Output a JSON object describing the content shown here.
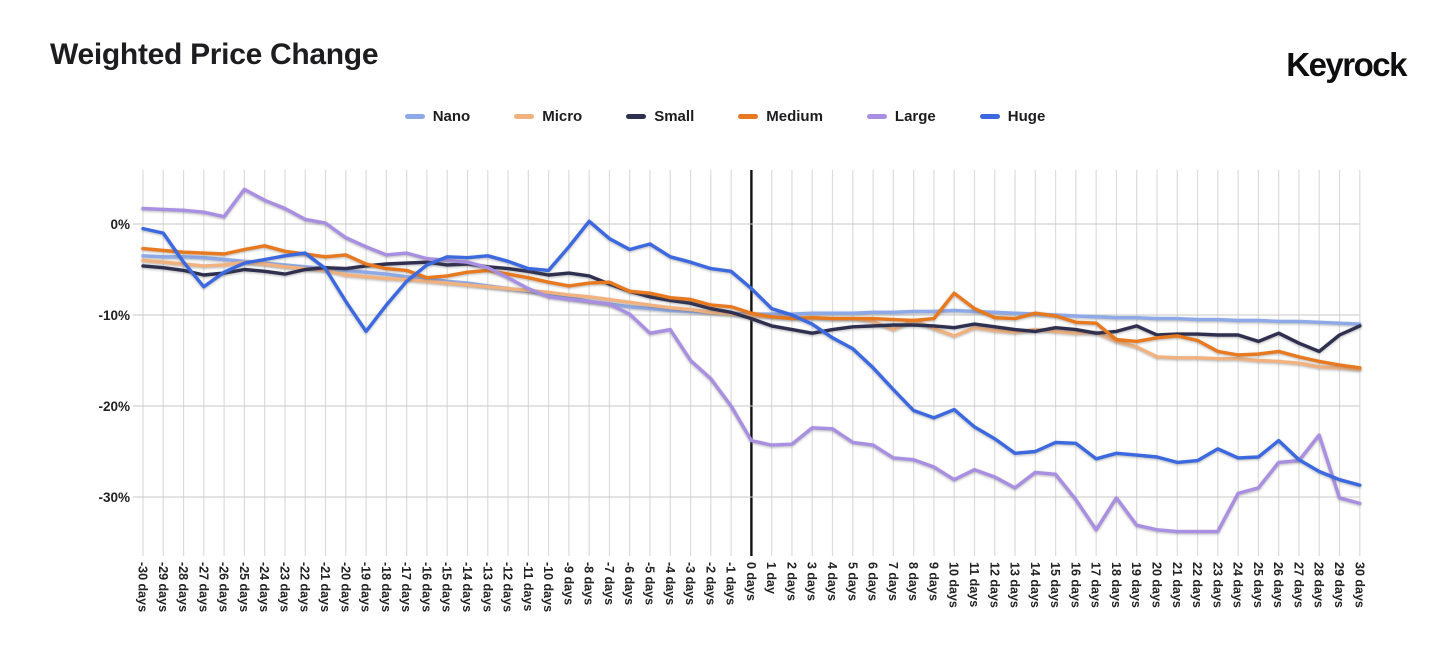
{
  "header": {
    "title": "Weighted Price Change",
    "logo": "Keyrock"
  },
  "chart_data": {
    "type": "line",
    "title": "Weighted Price Change",
    "xlabel": "",
    "ylabel": "",
    "grid": true,
    "legend_position": "top-center",
    "x_range": [
      -30,
      30
    ],
    "ylim": [
      -36,
      6
    ],
    "zero_day_divider": true,
    "y_ticks": [
      0,
      -10,
      -20,
      -30
    ],
    "y_tick_labels": [
      "0%",
      "-10%",
      "-20%",
      "-30%"
    ],
    "x": [
      -30,
      -29,
      -28,
      -27,
      -26,
      -25,
      -24,
      -23,
      -22,
      -21,
      -20,
      -19,
      -18,
      -17,
      -16,
      -15,
      -14,
      -13,
      -12,
      -11,
      -10,
      -9,
      -8,
      -7,
      -6,
      -5,
      -4,
      -3,
      -2,
      -1,
      0,
      1,
      2,
      3,
      4,
      5,
      6,
      7,
      8,
      9,
      10,
      11,
      12,
      13,
      14,
      15,
      16,
      17,
      18,
      19,
      20,
      21,
      22,
      23,
      24,
      25,
      26,
      27,
      28,
      29,
      30
    ],
    "x_labels": [
      "-30 days",
      "-29 days",
      "-28 days",
      "-27 days",
      "-26 days",
      "-25 days",
      "-24 days",
      "-23 days",
      "-22 days",
      "-21 days",
      "-20 days",
      "-19 days",
      "-18 days",
      "-17 days",
      "-16 days",
      "-15 days",
      "-14 days",
      "-13 days",
      "-12 days",
      "-11 days",
      "-10 days",
      "-9 days",
      "-8 days",
      "-7 days",
      "-6 days",
      "-5 days",
      "-4 days",
      "-3 days",
      "-2 days",
      "-1 days",
      "0 days",
      "1 day",
      "2 days",
      "3 days",
      "4 days",
      "5 days",
      "6 days",
      "7 days",
      "8 days",
      "9 days",
      "10 days",
      "11 days",
      "12 days",
      "13 days",
      "14 days",
      "15 days",
      "16 days",
      "17 days",
      "18 days",
      "19 days",
      "20 days",
      "21 days",
      "22 days",
      "23 days",
      "24 days",
      "25 days",
      "26 days",
      "27 days",
      "28 days",
      "29 days",
      "30 days"
    ],
    "series": [
      {
        "name": "Nano",
        "color": "#8ea9e8",
        "values": [
          -3.5,
          -3.6,
          -3.6,
          -3.7,
          -3.9,
          -4.1,
          -4.3,
          -4.5,
          -4.7,
          -4.9,
          -5.1,
          -5.3,
          -5.5,
          -5.8,
          -6.0,
          -6.3,
          -6.5,
          -6.8,
          -7.1,
          -7.4,
          -7.7,
          -8.1,
          -8.5,
          -8.8,
          -9.1,
          -9.3,
          -9.5,
          -9.6,
          -9.7,
          -9.8,
          -9.9,
          -9.9,
          -9.9,
          -9.8,
          -9.8,
          -9.8,
          -9.7,
          -9.7,
          -9.6,
          -9.6,
          -9.5,
          -9.6,
          -9.7,
          -9.8,
          -9.9,
          -10.0,
          -10.1,
          -10.2,
          -10.3,
          -10.3,
          -10.4,
          -10.4,
          -10.5,
          -10.5,
          -10.6,
          -10.6,
          -10.7,
          -10.7,
          -10.8,
          -10.9,
          -11.0
        ]
      },
      {
        "name": "Micro",
        "color": "#f2b27f",
        "values": [
          -4.0,
          -4.2,
          -4.4,
          -4.6,
          -4.5,
          -4.2,
          -4.4,
          -4.7,
          -4.9,
          -5.1,
          -5.6,
          -5.8,
          -6.0,
          -6.1,
          -6.3,
          -6.5,
          -6.7,
          -6.9,
          -7.1,
          -7.3,
          -7.5,
          -7.8,
          -8.0,
          -8.3,
          -8.6,
          -8.9,
          -9.2,
          -9.4,
          -9.7,
          -9.9,
          -10.1,
          -10.2,
          -10.3,
          -10.3,
          -10.4,
          -10.4,
          -10.7,
          -11.6,
          -10.6,
          -11.5,
          -12.3,
          -11.4,
          -11.7,
          -11.9,
          -11.6,
          -11.8,
          -12.0,
          -11.9,
          -12.9,
          -13.5,
          -14.6,
          -14.7,
          -14.7,
          -14.8,
          -14.8,
          -15.0,
          -15.1,
          -15.3,
          -15.7,
          -15.8,
          -16.0
        ]
      },
      {
        "name": "Small",
        "color": "#2f2f4f",
        "values": [
          -4.6,
          -4.8,
          -5.1,
          -5.6,
          -5.4,
          -5.0,
          -5.2,
          -5.5,
          -5.0,
          -4.8,
          -4.9,
          -4.6,
          -4.4,
          -4.3,
          -4.2,
          -4.5,
          -4.4,
          -4.7,
          -4.9,
          -5.2,
          -5.6,
          -5.4,
          -5.7,
          -6.6,
          -7.4,
          -8.0,
          -8.4,
          -8.7,
          -9.3,
          -9.7,
          -10.4,
          -11.2,
          -11.6,
          -12.0,
          -11.6,
          -11.3,
          -11.2,
          -11.1,
          -11.1,
          -11.2,
          -11.4,
          -11.0,
          -11.3,
          -11.6,
          -11.8,
          -11.4,
          -11.6,
          -12.0,
          -11.8,
          -11.2,
          -12.2,
          -12.1,
          -12.1,
          -12.2,
          -12.2,
          -12.9,
          -12.0,
          -13.1,
          -14.0,
          -12.2,
          -11.2
        ]
      },
      {
        "name": "Medium",
        "color": "#e8791e",
        "values": [
          -2.7,
          -2.9,
          -3.1,
          -3.2,
          -3.3,
          -2.8,
          -2.4,
          -3.0,
          -3.3,
          -3.6,
          -3.4,
          -4.4,
          -4.9,
          -5.1,
          -5.9,
          -5.7,
          -5.3,
          -5.1,
          -5.5,
          -5.9,
          -6.4,
          -6.8,
          -6.5,
          -6.4,
          -7.4,
          -7.6,
          -8.1,
          -8.3,
          -8.9,
          -9.1,
          -9.8,
          -10.2,
          -10.4,
          -10.3,
          -10.4,
          -10.4,
          -10.4,
          -10.5,
          -10.6,
          -10.4,
          -7.6,
          -9.3,
          -10.3,
          -10.4,
          -9.8,
          -10.1,
          -10.8,
          -10.9,
          -12.7,
          -12.9,
          -12.5,
          -12.3,
          -12.8,
          -14.0,
          -14.4,
          -14.3,
          -14.0,
          -14.6,
          -15.1,
          -15.5,
          -15.8
        ]
      },
      {
        "name": "Large",
        "color": "#a98fe2",
        "values": [
          1.7,
          1.6,
          1.5,
          1.3,
          0.8,
          3.8,
          2.6,
          1.7,
          0.5,
          0.1,
          -1.5,
          -2.5,
          -3.4,
          -3.2,
          -3.8,
          -4.0,
          -4.2,
          -4.8,
          -5.9,
          -7.1,
          -8.0,
          -8.3,
          -8.5,
          -8.8,
          -9.9,
          -12.0,
          -11.6,
          -15.0,
          -17.0,
          -20.0,
          -23.8,
          -24.3,
          -24.2,
          -22.4,
          -22.5,
          -24.0,
          -24.3,
          -25.7,
          -25.9,
          -26.7,
          -28.1,
          -27.0,
          -27.8,
          -29.0,
          -27.3,
          -27.5,
          -30.3,
          -33.6,
          -30.1,
          -33.1,
          -33.6,
          -33.8,
          -33.8,
          -33.8,
          -29.6,
          -29.0,
          -26.2,
          -26.0,
          -23.2,
          -30.1,
          -30.7
        ]
      },
      {
        "name": "Huge",
        "color": "#3c69e0",
        "values": [
          -0.5,
          -1.0,
          -4.2,
          -6.9,
          -5.3,
          -4.3,
          -3.9,
          -3.5,
          -3.2,
          -4.9,
          -8.5,
          -11.8,
          -8.9,
          -6.3,
          -4.5,
          -3.6,
          -3.7,
          -3.5,
          -4.1,
          -4.9,
          -5.1,
          -2.5,
          0.3,
          -1.6,
          -2.8,
          -2.2,
          -3.6,
          -4.2,
          -4.9,
          -5.2,
          -7.1,
          -9.3,
          -10.0,
          -11.0,
          -12.5,
          -13.7,
          -15.8,
          -18.2,
          -20.5,
          -21.3,
          -20.4,
          -22.3,
          -23.6,
          -25.2,
          -25.0,
          -24.0,
          -24.1,
          -25.8,
          -25.2,
          -25.4,
          -25.6,
          -26.2,
          -26.0,
          -24.7,
          -25.7,
          -25.6,
          -23.8,
          -25.9,
          -27.2,
          -28.1,
          -28.7
        ]
      }
    ]
  }
}
